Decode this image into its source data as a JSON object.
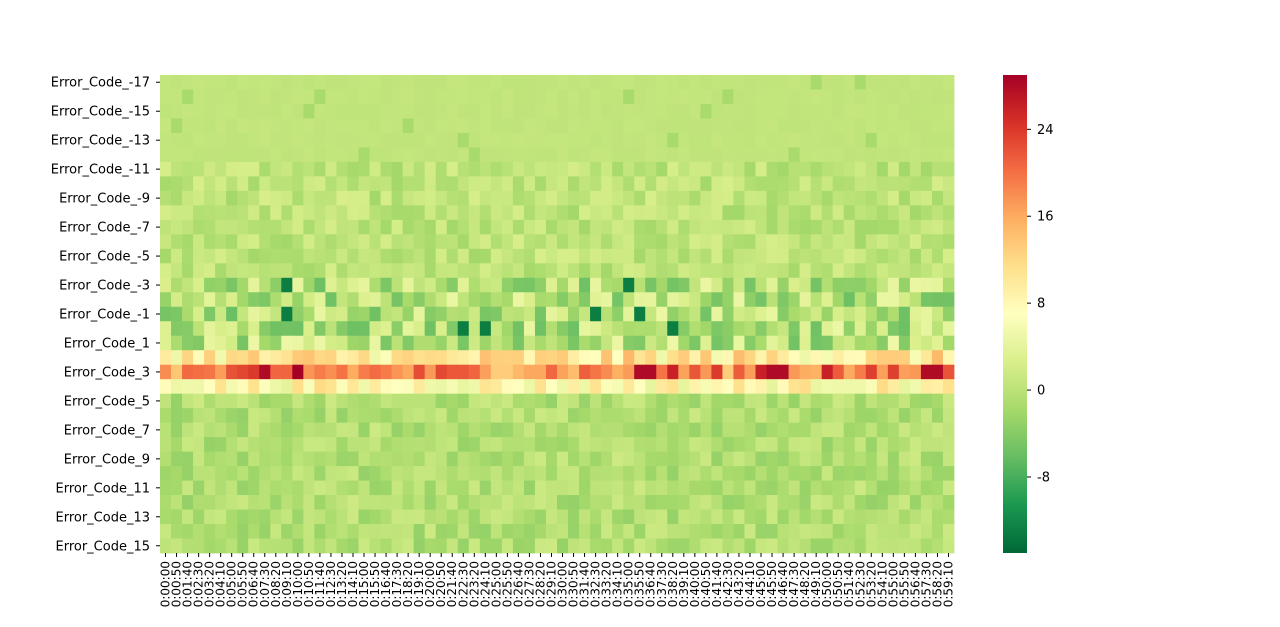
{
  "chart_data": {
    "type": "heatmap",
    "title": "",
    "xlabel": "",
    "ylabel": "",
    "y_tick_labels": [
      "Error_Code_-17",
      "Error_Code_-15",
      "Error_Code_-13",
      "Error_Code_-11",
      "Error_Code_-9",
      "Error_Code_-7",
      "Error_Code_-5",
      "Error_Code_-3",
      "Error_Code_-1",
      "Error_Code_1",
      "Error_Code_3",
      "Error_Code_5",
      "Error_Code_7",
      "Error_Code_9",
      "Error_Code_11",
      "Error_Code_13",
      "Error_Code_15"
    ],
    "x_tick_labels": [
      "0:00:00",
      "0:00:50",
      "0:01:40",
      "0:02:30",
      "0:03:20",
      "0:04:10",
      "0:05:00",
      "0:05:50",
      "0:06:40",
      "0:07:30",
      "0:08:20",
      "0:09:10",
      "0:10:00",
      "0:10:50",
      "0:11:40",
      "0:12:30",
      "0:13:20",
      "0:14:10",
      "0:15:00",
      "0:15:50",
      "0:16:40",
      "0:17:30",
      "0:18:20",
      "0:19:10",
      "0:20:00",
      "0:20:50",
      "0:21:40",
      "0:22:30",
      "0:23:20",
      "0:24:10",
      "0:25:00",
      "0:25:50",
      "0:26:40",
      "0:27:30",
      "0:28:20",
      "0:29:10",
      "0:30:00",
      "0:30:50",
      "0:31:40",
      "0:32:30",
      "0:33:20",
      "0:34:10",
      "0:35:00",
      "0:35:50",
      "0:36:40",
      "0:37:30",
      "0:38:20",
      "0:39:10",
      "0:40:00",
      "0:40:50",
      "0:41:40",
      "0:42:30",
      "0:43:20",
      "0:44:10",
      "0:45:00",
      "0:45:50",
      "0:46:40",
      "0:47:30",
      "0:48:20",
      "0:49:10",
      "0:50:00",
      "0:50:50",
      "0:51:40",
      "0:52:30",
      "0:53:20",
      "0:54:10",
      "0:55:00",
      "0:55:50",
      "0:56:40",
      "0:57:30",
      "0:58:20",
      "0:59:10"
    ],
    "rows": 33,
    "cols": 72,
    "row_start": -17,
    "value_range": [
      -15,
      29
    ],
    "colorbar_ticks": [
      "-8",
      "0",
      "8",
      "16",
      "24"
    ],
    "colormap": "RdYlGn_r",
    "colormap_stops": [
      "#006837",
      "#1a9850",
      "#66bd63",
      "#a6d96a",
      "#d9ef8b",
      "#ffffbf",
      "#fee08b",
      "#fdae61",
      "#f46d43",
      "#d73027",
      "#a50026"
    ],
    "row_profile_approx": {
      "Error_Code_-17 to Error_Code_-12": "about 0 to 1",
      "Error_Code_-11 to Error_Code_-4": "about -1 to 3",
      "Error_Code_-3 to Error_Code_1": "about -12 to 8",
      "Error_Code_2": "about 5 to 15",
      "Error_Code_3": "about 12 to 28",
      "Error_Code_4": "about 4 to 13",
      "Error_Code_5 to Error_Code_15": "about -3 to 2"
    }
  }
}
